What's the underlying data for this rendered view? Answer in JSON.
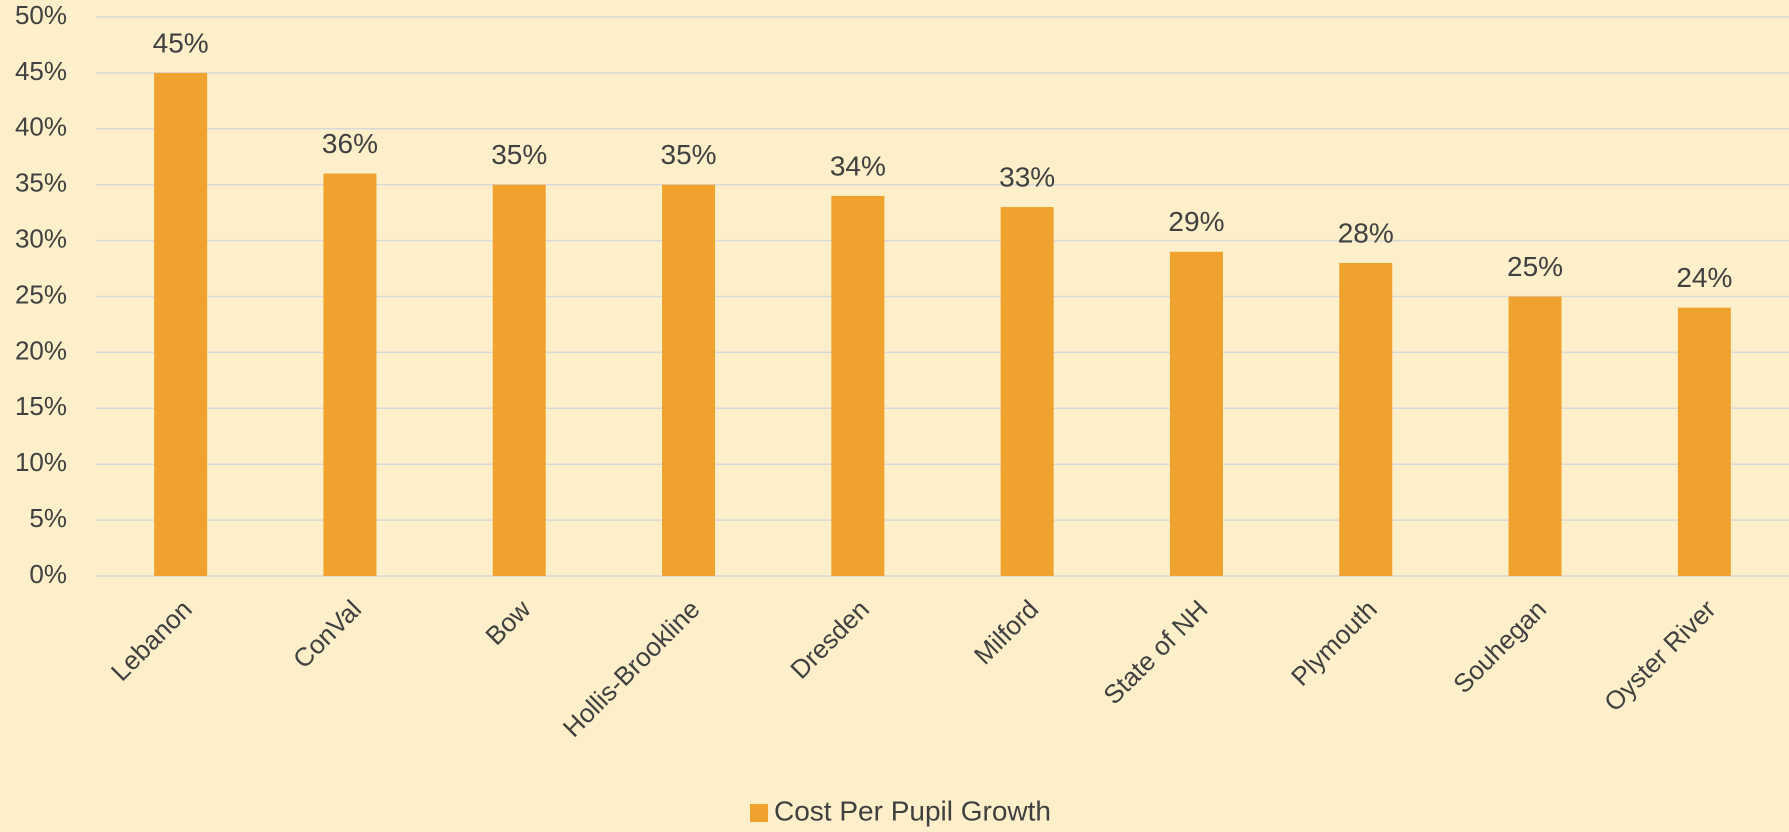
{
  "chart_data": {
    "type": "bar",
    "categories": [
      "Lebanon",
      "ConVal",
      "Bow",
      "Hollis-Brookline",
      "Dresden",
      "Milford",
      "State of NH",
      "Plymouth",
      "Souhegan",
      "Oyster River"
    ],
    "series": [
      {
        "name": "Cost Per Pupil Growth",
        "color": "#f0a22e",
        "values": [
          45,
          36,
          35,
          35,
          34,
          33,
          29,
          28,
          25,
          24
        ],
        "value_labels": [
          "45%",
          "36%",
          "35%",
          "35%",
          "34%",
          "33%",
          "29%",
          "28%",
          "25%",
          "24%"
        ]
      }
    ],
    "ylim": [
      0,
      50
    ],
    "yticks": [
      {
        "value": 0,
        "label": "0%"
      },
      {
        "value": 5,
        "label": "5%"
      },
      {
        "value": 10,
        "label": "10%"
      },
      {
        "value": 15,
        "label": "15%"
      },
      {
        "value": 20,
        "label": "20%"
      },
      {
        "value": 25,
        "label": "25%"
      },
      {
        "value": 30,
        "label": "30%"
      },
      {
        "value": 35,
        "label": "35%"
      },
      {
        "value": 40,
        "label": "40%"
      },
      {
        "value": 45,
        "label": "45%"
      },
      {
        "value": 50,
        "label": "50%"
      }
    ],
    "grid": true,
    "legend": "bottom"
  }
}
